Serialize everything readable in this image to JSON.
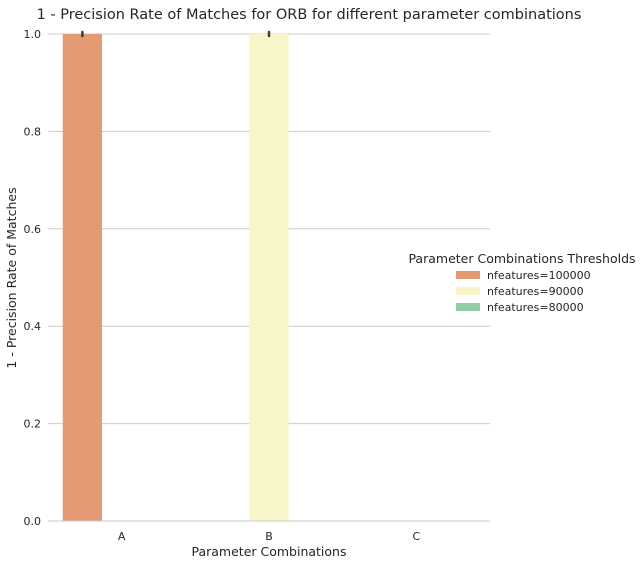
{
  "chart_data": {
    "type": "bar",
    "title": "1 - Precision Rate of Matches for ORB for different parameter combinations",
    "xlabel": "Parameter Combinations",
    "ylabel": "1 - Precision Rate of Matches",
    "categories": [
      "A",
      "B",
      "C"
    ],
    "ylim": [
      0,
      1.0
    ],
    "yticks": [
      "0.0",
      "0.2",
      "0.4",
      "0.6",
      "0.8",
      "1.0"
    ],
    "grid": true,
    "legend": {
      "title": "Parameter Combinations Thresholds",
      "placement": "right"
    },
    "series": [
      {
        "name": "nfeatures=100000",
        "color": "#e49a72",
        "values": [
          1.0,
          null,
          null
        ]
      },
      {
        "name": "nfeatures=90000",
        "color": "#f8f6c8",
        "values": [
          null,
          1.0,
          null
        ]
      },
      {
        "name": "nfeatures=80000",
        "color": "#95ccaa",
        "values": [
          null,
          null,
          null
        ]
      }
    ]
  }
}
